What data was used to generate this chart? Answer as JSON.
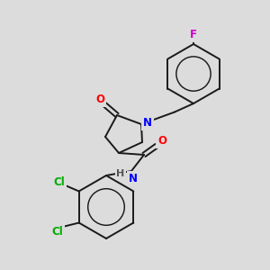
{
  "bg_color": "#dcdcdc",
  "bond_color": "#1a1a1a",
  "atom_colors": {
    "O": "#ff0000",
    "N": "#0000ff",
    "Cl": "#00aa00",
    "F": "#cc00cc",
    "H": "#555555"
  }
}
